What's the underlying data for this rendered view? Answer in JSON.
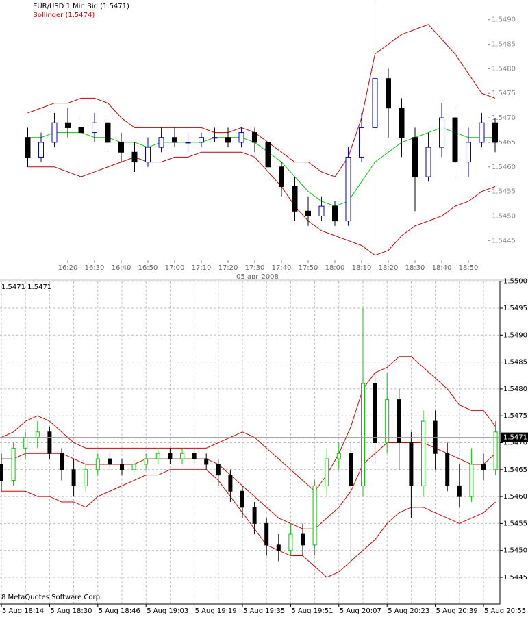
{
  "chart_data": [
    {
      "type": "candlestick",
      "title": "EUR/USD 1 Min Bid (1.5471)",
      "x_label": "05 авг 2008",
      "categories": [
        null,
        null,
        null,
        "16:20",
        null,
        "16:30",
        null,
        "16:40",
        null,
        "16:50",
        null,
        "17:00",
        null,
        "17:10",
        null,
        "17:20",
        null,
        "17:30",
        null,
        "17:40",
        null,
        "17:50",
        null,
        "18:00",
        null,
        "18:10",
        null,
        "18:20",
        null,
        "18:30",
        null,
        "18:40",
        null,
        "18:50",
        null,
        null
      ],
      "open": [
        1.5466,
        1.5462,
        1.5465,
        1.5469,
        1.5468,
        1.5467,
        1.5469,
        1.5465,
        1.5463,
        1.5461,
        1.5464,
        1.5466,
        1.5465,
        1.5465,
        1.5466,
        1.5466,
        1.5465,
        1.5467,
        1.5465,
        1.546,
        1.5456,
        1.5451,
        1.545,
        1.5452,
        1.5449,
        1.5462,
        1.5468,
        1.5478,
        1.5472,
        1.5466,
        1.5458,
        1.5464,
        1.547,
        1.5461,
        1.5465,
        1.5469
      ],
      "high": [
        1.5468,
        1.5467,
        1.5471,
        1.5472,
        1.547,
        1.5471,
        1.547,
        1.5467,
        1.5465,
        1.5466,
        1.5468,
        1.5468,
        1.5467,
        1.5467,
        1.5468,
        1.5468,
        1.5468,
        1.5468,
        1.5466,
        1.5461,
        1.5458,
        1.5454,
        1.5454,
        1.5453,
        1.5464,
        1.5471,
        1.5493,
        1.548,
        1.5474,
        1.5468,
        1.5467,
        1.5473,
        1.5472,
        1.5468,
        1.5471,
        1.547
      ],
      "low": [
        1.546,
        1.5461,
        1.5464,
        1.5466,
        1.5465,
        1.5465,
        1.5463,
        1.5461,
        1.5459,
        1.546,
        1.5463,
        1.5464,
        1.5463,
        1.5464,
        1.5465,
        1.5464,
        1.5464,
        1.5463,
        1.5459,
        1.5454,
        1.5449,
        1.5448,
        1.5449,
        1.5448,
        1.5448,
        1.5461,
        1.5446,
        1.5466,
        1.5462,
        1.5451,
        1.5457,
        1.5462,
        1.5458,
        1.5458,
        1.5464,
        1.5463
      ],
      "close": [
        1.5462,
        1.5465,
        1.5469,
        1.5468,
        1.5467,
        1.5469,
        1.5465,
        1.5463,
        1.5461,
        1.5464,
        1.5466,
        1.5465,
        1.5465,
        1.5466,
        1.5466,
        1.5465,
        1.5467,
        1.5465,
        1.546,
        1.5456,
        1.5451,
        1.545,
        1.5452,
        1.5449,
        1.5462,
        1.5468,
        1.5478,
        1.5472,
        1.5466,
        1.5458,
        1.5464,
        1.547,
        1.5461,
        1.5465,
        1.5469,
        1.5465
      ],
      "up_color": "#0000cc",
      "down_color": "#000000",
      "bands": {
        "name": "Bollinger (1.5474)",
        "color": "#cc0000",
        "middle_color": "#00cc00",
        "upper": [
          1.5471,
          1.5472,
          1.5473,
          1.5473,
          1.5474,
          1.5474,
          1.5473,
          1.547,
          1.5468,
          1.5468,
          1.5468,
          1.5468,
          1.5468,
          1.5468,
          1.5467,
          1.5467,
          1.5468,
          1.5467,
          1.5465,
          1.5463,
          1.5461,
          1.5461,
          1.5459,
          1.5458,
          1.5462,
          1.547,
          1.5483,
          1.5485,
          1.5487,
          1.5488,
          1.5489,
          1.5486,
          1.5483,
          1.5479,
          1.5475,
          1.5474
        ],
        "middle": [
          1.5466,
          1.5466,
          1.5467,
          1.5467,
          1.5467,
          1.5466,
          1.5466,
          1.5465,
          1.5465,
          1.5464,
          1.5465,
          1.5465,
          1.5465,
          1.5465,
          1.5466,
          1.5466,
          1.5466,
          1.5465,
          1.5463,
          1.5461,
          1.5458,
          1.5455,
          1.5453,
          1.5452,
          1.5453,
          1.5457,
          1.5461,
          1.5463,
          1.5465,
          1.5466,
          1.5467,
          1.5468,
          1.5467,
          1.5466,
          1.5466,
          1.5466
        ],
        "lower": [
          1.546,
          1.546,
          1.546,
          1.5459,
          1.5458,
          1.5459,
          1.546,
          1.5461,
          1.5462,
          1.5461,
          1.5461,
          1.5462,
          1.5462,
          1.5463,
          1.5463,
          1.5463,
          1.5463,
          1.5462,
          1.5459,
          1.5456,
          1.5452,
          1.5449,
          1.5447,
          1.5446,
          1.5445,
          1.5444,
          1.5442,
          1.5443,
          1.5446,
          1.5448,
          1.5449,
          1.545,
          1.5452,
          1.5453,
          1.5455,
          1.5456
        ]
      },
      "ylim": [
        1.5441,
        1.5494
      ],
      "yticks": [
        1.5445,
        {
          "value": 1.545,
          "label": "1.5450"
        },
        1.5455,
        {
          "value": 1.546,
          "label": "1.5460"
        },
        1.5465,
        {
          "value": 1.547,
          "label": "1.5470"
        },
        1.5475,
        {
          "value": 1.548,
          "label": "1.5480"
        },
        1.5485,
        {
          "value": 1.549,
          "label": "1.5490"
        }
      ],
      "grid": false
    },
    {
      "type": "candlestick",
      "info": "1.5471 1.5471",
      "watermark": "8 MetaQuotes Software Corp.",
      "categories": [
        "5 Aug 18:14",
        null,
        null,
        null,
        "5 Aug 18:30",
        null,
        null,
        null,
        "5 Aug 18:46",
        null,
        null,
        null,
        "5 Aug 19:03",
        null,
        null,
        null,
        "5 Aug 19:19",
        null,
        null,
        null,
        "5 Aug 19:35",
        null,
        null,
        null,
        "5 Aug 19:51",
        null,
        null,
        null,
        "5 Aug 20:07",
        null,
        null,
        null,
        "5 Aug 20:23",
        null,
        null,
        null,
        "5 Aug 20:39",
        null,
        null,
        null,
        "5 Aug 20:55",
        null
      ],
      "open": [
        1.5466,
        1.5463,
        1.5469,
        1.5471,
        1.5472,
        1.5468,
        1.5465,
        1.5462,
        1.5465,
        1.5467,
        1.5466,
        1.5465,
        1.5466,
        1.5467,
        1.5468,
        1.5467,
        1.5468,
        1.5467,
        1.5466,
        1.5464,
        1.5461,
        1.5458,
        1.5455,
        1.5451,
        1.545,
        1.5453,
        1.5451,
        1.5462,
        1.5467,
        1.5468,
        1.5462,
        1.5481,
        1.547,
        1.5478,
        1.547,
        1.5462,
        1.5474,
        1.5468,
        1.5462,
        1.546,
        1.5466,
        1.5465
      ],
      "high": [
        1.5468,
        1.547,
        1.5472,
        1.5474,
        1.5473,
        1.5469,
        1.5467,
        1.5466,
        1.5468,
        1.5468,
        1.5467,
        1.5467,
        1.5468,
        1.5469,
        1.5469,
        1.5469,
        1.5469,
        1.5468,
        1.5467,
        1.5465,
        1.5462,
        1.5459,
        1.5456,
        1.5453,
        1.5455,
        1.5455,
        1.5463,
        1.5469,
        1.547,
        1.547,
        1.5495,
        1.5483,
        1.5483,
        1.548,
        1.5472,
        1.5476,
        1.5476,
        1.547,
        1.5466,
        1.5469,
        1.5468,
        1.5474
      ],
      "low": [
        1.5461,
        1.5462,
        1.5467,
        1.5469,
        1.5467,
        1.5463,
        1.546,
        1.5461,
        1.5464,
        1.5465,
        1.5464,
        1.5464,
        1.5465,
        1.5466,
        1.5466,
        1.5466,
        1.5466,
        1.5465,
        1.5462,
        1.5459,
        1.5456,
        1.5453,
        1.5449,
        1.5448,
        1.5449,
        1.5449,
        1.5449,
        1.546,
        1.5465,
        1.5447,
        1.546,
        1.5466,
        1.5468,
        1.5465,
        1.5456,
        1.546,
        1.5465,
        1.5461,
        1.5458,
        1.5459,
        1.5463,
        1.5464
      ],
      "close": [
        1.5463,
        1.5469,
        1.5471,
        1.5472,
        1.5468,
        1.5465,
        1.5462,
        1.5465,
        1.5467,
        1.5466,
        1.5465,
        1.5466,
        1.5467,
        1.5468,
        1.5467,
        1.5468,
        1.5467,
        1.5466,
        1.5464,
        1.5461,
        1.5458,
        1.5455,
        1.5451,
        1.545,
        1.5453,
        1.5451,
        1.5462,
        1.5467,
        1.5468,
        1.5462,
        1.5481,
        1.547,
        1.5478,
        1.547,
        1.5462,
        1.5474,
        1.5468,
        1.5462,
        1.546,
        1.5466,
        1.5465,
        1.5472
      ],
      "up_color": "#00cc00",
      "down_color": "#000000",
      "bands": {
        "color": "#dd0000",
        "middle_color": "#dd0000",
        "upper": [
          1.5471,
          1.5472,
          1.5474,
          1.5475,
          1.5474,
          1.5472,
          1.547,
          1.5469,
          1.5469,
          1.5469,
          1.5469,
          1.5469,
          1.5469,
          1.5469,
          1.5469,
          1.5469,
          1.5469,
          1.5469,
          1.547,
          1.5471,
          1.5472,
          1.5471,
          1.5469,
          1.5467,
          1.5465,
          1.5463,
          1.5461,
          1.5464,
          1.5468,
          1.5473,
          1.548,
          1.5483,
          1.5484,
          1.5486,
          1.5486,
          1.5484,
          1.5482,
          1.548,
          1.5477,
          1.5476,
          1.5476,
          1.5473
        ],
        "middle": [
          1.5467,
          1.5467,
          1.5468,
          1.5468,
          1.5468,
          1.5468,
          1.5467,
          1.5466,
          1.5466,
          1.5466,
          1.5466,
          1.5466,
          1.5467,
          1.5467,
          1.5467,
          1.5467,
          1.5467,
          1.5467,
          1.5466,
          1.5464,
          1.5462,
          1.546,
          1.5458,
          1.5456,
          1.5455,
          1.5454,
          1.5454,
          1.5456,
          1.5458,
          1.5461,
          1.5466,
          1.5468,
          1.547,
          1.547,
          1.547,
          1.547,
          1.5469,
          1.5468,
          1.5467,
          1.5466,
          1.5466,
          1.5468
        ],
        "lower": [
          1.5461,
          1.5461,
          1.5461,
          1.546,
          1.546,
          1.5459,
          1.5459,
          1.5458,
          1.546,
          1.5461,
          1.5462,
          1.5463,
          1.5464,
          1.5464,
          1.5465,
          1.5465,
          1.5465,
          1.5465,
          1.5463,
          1.546,
          1.5457,
          1.5454,
          1.5451,
          1.545,
          1.5449,
          1.5449,
          1.5447,
          1.5445,
          1.5446,
          1.5448,
          1.545,
          1.5452,
          1.5455,
          1.5457,
          1.5458,
          1.5458,
          1.5457,
          1.5456,
          1.5455,
          1.5456,
          1.5457,
          1.5459
        ]
      },
      "last_price": {
        "value": 1.5471,
        "label": "1.5471"
      },
      "ylim": [
        1.544,
        1.55
      ],
      "yticks": [
        1.5445,
        {
          "value": 1.545,
          "label": "1.5450"
        },
        1.5455,
        {
          "value": 1.546,
          "label": "1.5460"
        },
        1.5465,
        {
          "value": 1.547,
          "label": "1.5470"
        },
        1.5475,
        {
          "value": 1.548,
          "label": "1.5480"
        },
        1.5485,
        {
          "value": 1.549,
          "label": "1.5490"
        },
        1.5495,
        {
          "value": 1.55,
          "label": "1.5500"
        }
      ],
      "grid": true
    }
  ]
}
